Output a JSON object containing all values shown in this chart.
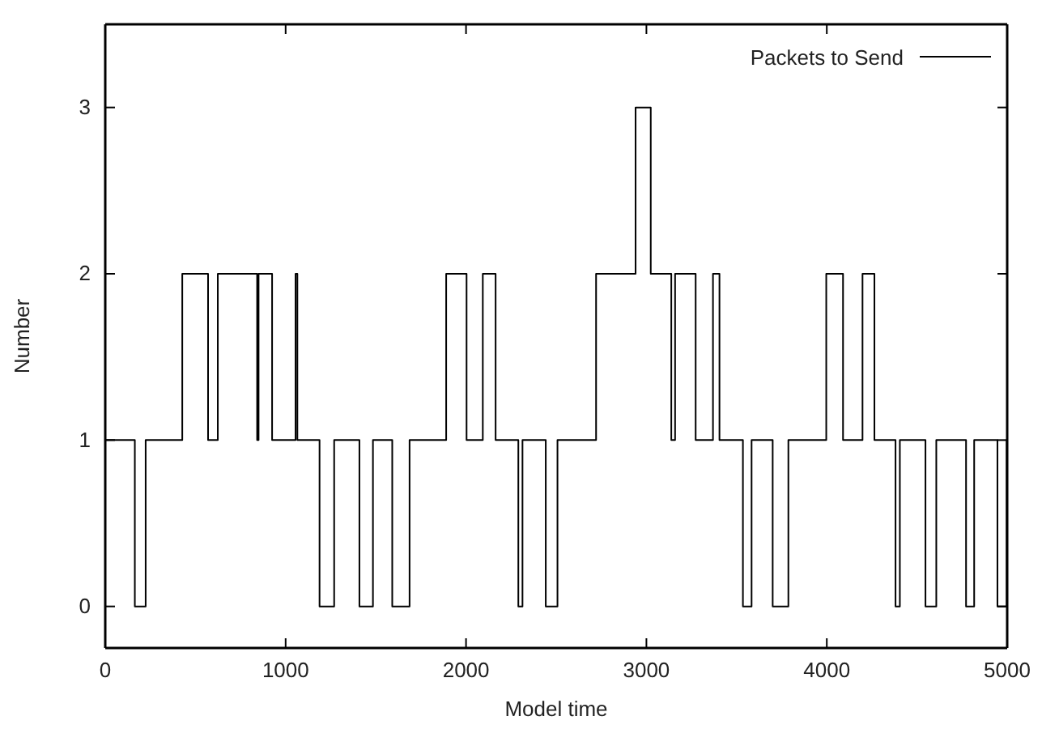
{
  "chart_data": {
    "type": "step",
    "xlabel": "Model time",
    "ylabel": "Number",
    "xlim": [
      0,
      5000
    ],
    "ylim": [
      -0.25,
      3.5
    ],
    "xticks": [
      0,
      1000,
      2000,
      3000,
      4000,
      5000
    ],
    "yticks": [
      0,
      1,
      2,
      3
    ],
    "grid": false,
    "legend": "top right",
    "series": [
      {
        "name": "Packets to Send",
        "color": "#000000",
        "x": [
          0,
          164,
          224,
          427,
          570,
          624,
          842,
          850,
          925,
          1055,
          1065,
          1188,
          1269,
          1409,
          1484,
          1591,
          1687,
          1890,
          2003,
          2093,
          2164,
          2290,
          2313,
          2442,
          2507,
          2721,
          2940,
          3024,
          3138,
          3159,
          3273,
          3369,
          3405,
          3535,
          3583,
          3700,
          3787,
          3997,
          4090,
          4198,
          4264,
          4381,
          4405,
          4547,
          4607,
          4772,
          4817,
          4946,
          4997,
          5000
        ],
        "values": [
          1,
          0,
          1,
          2,
          1,
          2,
          1,
          2,
          1,
          2,
          1,
          0,
          1,
          0,
          1,
          0,
          1,
          2,
          1,
          2,
          1,
          0,
          1,
          0,
          1,
          2,
          3,
          2,
          1,
          2,
          1,
          2,
          1,
          0,
          1,
          0,
          1,
          2,
          1,
          2,
          1,
          0,
          1,
          0,
          1,
          0,
          1,
          0,
          1,
          1
        ]
      }
    ]
  }
}
